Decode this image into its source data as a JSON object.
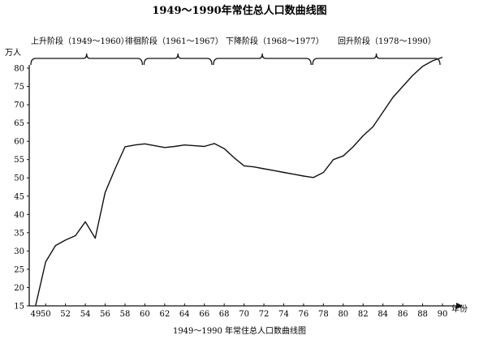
{
  "chart_data": {
    "type": "line",
    "title": "1949～1990年常住总人口数曲线图",
    "caption": "1949～1990 年常住总人口数曲线图",
    "ylabel": "万人",
    "xlabel": "年份",
    "ylim": [
      15,
      85
    ],
    "xlim": [
      48,
      91
    ],
    "y_ticks": [
      15,
      20,
      25,
      30,
      35,
      40,
      45,
      50,
      55,
      60,
      65,
      70,
      75,
      80
    ],
    "x_ticks": [
      "49",
      "50",
      "52",
      "54",
      "56",
      "58",
      "60",
      "62",
      "64",
      "66",
      "68",
      "70",
      "72",
      "74",
      "76",
      "78",
      "80",
      "82",
      "84",
      "86",
      "88",
      "90"
    ],
    "phases": [
      {
        "label": "上升阶段（1949～1960）",
        "start": 49,
        "end": 60
      },
      {
        "label": "徘徊阶段（1961～1967）",
        "start": 60,
        "end": 67
      },
      {
        "label": "下降阶段（1968～1977）",
        "start": 67,
        "end": 77
      },
      {
        "label": "回升阶段（1978～1990）",
        "start": 77,
        "end": 90
      }
    ],
    "series": [
      {
        "x": [
          49,
          50,
          51,
          52,
          53,
          54,
          55,
          56,
          57,
          58,
          59,
          60,
          61,
          62,
          63,
          64,
          65,
          66,
          67,
          68,
          69,
          70,
          71,
          72,
          73,
          74,
          75,
          76,
          77,
          78,
          79,
          80,
          81,
          82,
          83,
          84,
          85,
          86,
          87,
          88,
          89,
          90
        ],
        "values": [
          15.2,
          27.0,
          31.5,
          33.0,
          34.2,
          38.0,
          33.5,
          46.0,
          52.5,
          58.5,
          59.0,
          59.3,
          58.8,
          58.3,
          58.6,
          59.0,
          58.8,
          58.6,
          59.4,
          58.0,
          55.5,
          53.3,
          53.0,
          52.5,
          52.0,
          51.5,
          51.0,
          50.5,
          50.1,
          51.5,
          55.0,
          56.0,
          58.5,
          61.5,
          64.0,
          68.0,
          72.0,
          75.0,
          78.0,
          80.5,
          82.0,
          83.0
        ]
      }
    ]
  }
}
